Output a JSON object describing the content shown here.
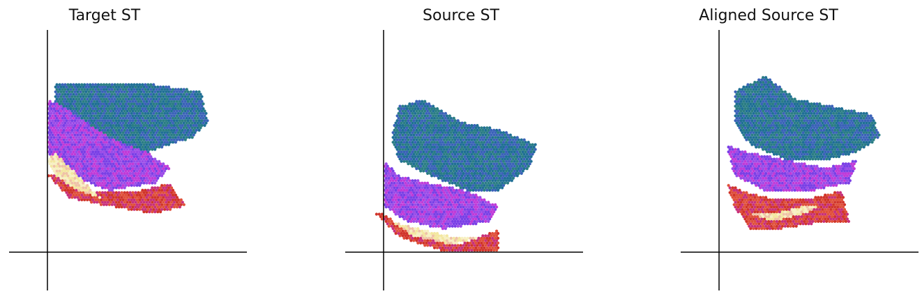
{
  "figure": {
    "panels": [
      {
        "id": "target",
        "title": "Target ST"
      },
      {
        "id": "source",
        "title": "Source ST"
      },
      {
        "id": "aligned",
        "title": "Aligned Source ST"
      }
    ]
  },
  "palette": {
    "blue": "#1f6f95",
    "teal": "#2a7d84",
    "violet": "#7a3fe6",
    "magenta": "#c03ad8",
    "pink": "#d76ac9",
    "red": "#d0342a",
    "cream": "#f3e7a0",
    "axis": "#000000"
  },
  "chart_data": [
    {
      "type": "scatter",
      "title": "Target ST",
      "axes_through_origin": true,
      "xlim": [
        -5,
        26
      ],
      "ylim": [
        -5,
        29
      ],
      "grid": false,
      "spots": "hexagonal spatial transcriptomics grid",
      "regions": [
        {
          "class": "blue",
          "polygon": [
            [
              1,
              22
            ],
            [
              13,
              22
            ],
            [
              20,
              21
            ],
            [
              21,
              17
            ],
            [
              19,
              15
            ],
            [
              13,
              13
            ],
            [
              8,
              15
            ],
            [
              3,
              17
            ],
            [
              1,
              19
            ]
          ]
        },
        {
          "class": "violet",
          "polygon": [
            [
              0,
              20
            ],
            [
              2,
              19
            ],
            [
              8,
              15
            ],
            [
              13,
              13
            ],
            [
              16,
              11
            ],
            [
              14,
              9
            ],
            [
              8,
              8
            ],
            [
              3,
              10
            ],
            [
              0,
              13
            ]
          ]
        },
        {
          "class": "red",
          "polygon": [
            [
              0,
              10
            ],
            [
              3,
              7
            ],
            [
              8,
              6
            ],
            [
              14,
              5
            ],
            [
              18,
              6
            ],
            [
              16,
              9
            ],
            [
              12,
              8
            ],
            [
              6,
              8
            ],
            [
              2,
              10
            ]
          ]
        },
        {
          "class": "cream",
          "polygon": [
            [
              0,
              12
            ],
            [
              1,
              10
            ],
            [
              4,
              8
            ],
            [
              7,
              7
            ],
            [
              5,
              9
            ],
            [
              3,
              11
            ],
            [
              1,
              13
            ]
          ]
        }
      ]
    },
    {
      "type": "scatter",
      "title": "Source ST",
      "axes_through_origin": true,
      "xlim": [
        -5,
        26
      ],
      "ylim": [
        -5,
        29
      ],
      "grid": false,
      "spots": "hexagonal spatial transcriptomics grid",
      "regions": [
        {
          "class": "blue",
          "polygon": [
            [
              2,
              19
            ],
            [
              5,
              20
            ],
            [
              10,
              17
            ],
            [
              15,
              16
            ],
            [
              20,
              14
            ],
            [
              19,
              11
            ],
            [
              15,
              8
            ],
            [
              11,
              8
            ],
            [
              6,
              10
            ],
            [
              2,
              12
            ],
            [
              1,
              15
            ]
          ]
        },
        {
          "class": "violet",
          "polygon": [
            [
              0,
              12
            ],
            [
              2,
              10
            ],
            [
              6,
              9
            ],
            [
              11,
              8
            ],
            [
              15,
              6
            ],
            [
              14,
              4
            ],
            [
              8,
              3
            ],
            [
              3,
              4
            ],
            [
              0,
              6
            ]
          ]
        },
        {
          "class": "red",
          "polygon": [
            [
              -1,
              5
            ],
            [
              2,
              2
            ],
            [
              8,
              0
            ],
            [
              15,
              0
            ],
            [
              15,
              3
            ],
            [
              10,
              1
            ],
            [
              4,
              2
            ],
            [
              0,
              5
            ]
          ]
        },
        {
          "class": "cream",
          "polygon": [
            [
              1,
              4
            ],
            [
              4,
              2
            ],
            [
              9,
              1
            ],
            [
              13,
              2
            ],
            [
              9,
              2
            ],
            [
              5,
              3
            ]
          ]
        }
      ]
    },
    {
      "type": "scatter",
      "title": "Aligned Source ST",
      "axes_through_origin": true,
      "xlim": [
        -5,
        26
      ],
      "ylim": [
        -5,
        29
      ],
      "grid": false,
      "spots": "hexagonal spatial transcriptomics grid",
      "regions": [
        {
          "class": "blue",
          "polygon": [
            [
              2,
              21
            ],
            [
              6,
              23
            ],
            [
              10,
              20
            ],
            [
              15,
              19
            ],
            [
              20,
              18
            ],
            [
              21,
              15
            ],
            [
              18,
              13
            ],
            [
              14,
              12
            ],
            [
              9,
              12
            ],
            [
              4,
              14
            ],
            [
              2,
              17
            ]
          ]
        },
        {
          "class": "violet",
          "polygon": [
            [
              1,
              14
            ],
            [
              4,
              13
            ],
            [
              9,
              12
            ],
            [
              14,
              11
            ],
            [
              18,
              12
            ],
            [
              17,
              9
            ],
            [
              12,
              8
            ],
            [
              6,
              8
            ],
            [
              2,
              10
            ]
          ]
        },
        {
          "class": "red",
          "polygon": [
            [
              1,
              9
            ],
            [
              2,
              6
            ],
            [
              4,
              3
            ],
            [
              8,
              3
            ],
            [
              14,
              4
            ],
            [
              17,
              4
            ],
            [
              16,
              8
            ],
            [
              12,
              7
            ],
            [
              7,
              7
            ],
            [
              3,
              8
            ]
          ]
        },
        {
          "class": "cream",
          "polygon": [
            [
              4,
              5
            ],
            [
              7,
              4
            ],
            [
              11,
              5
            ],
            [
              13,
              6
            ],
            [
              11,
              6
            ],
            [
              7,
              5
            ]
          ]
        }
      ]
    }
  ]
}
